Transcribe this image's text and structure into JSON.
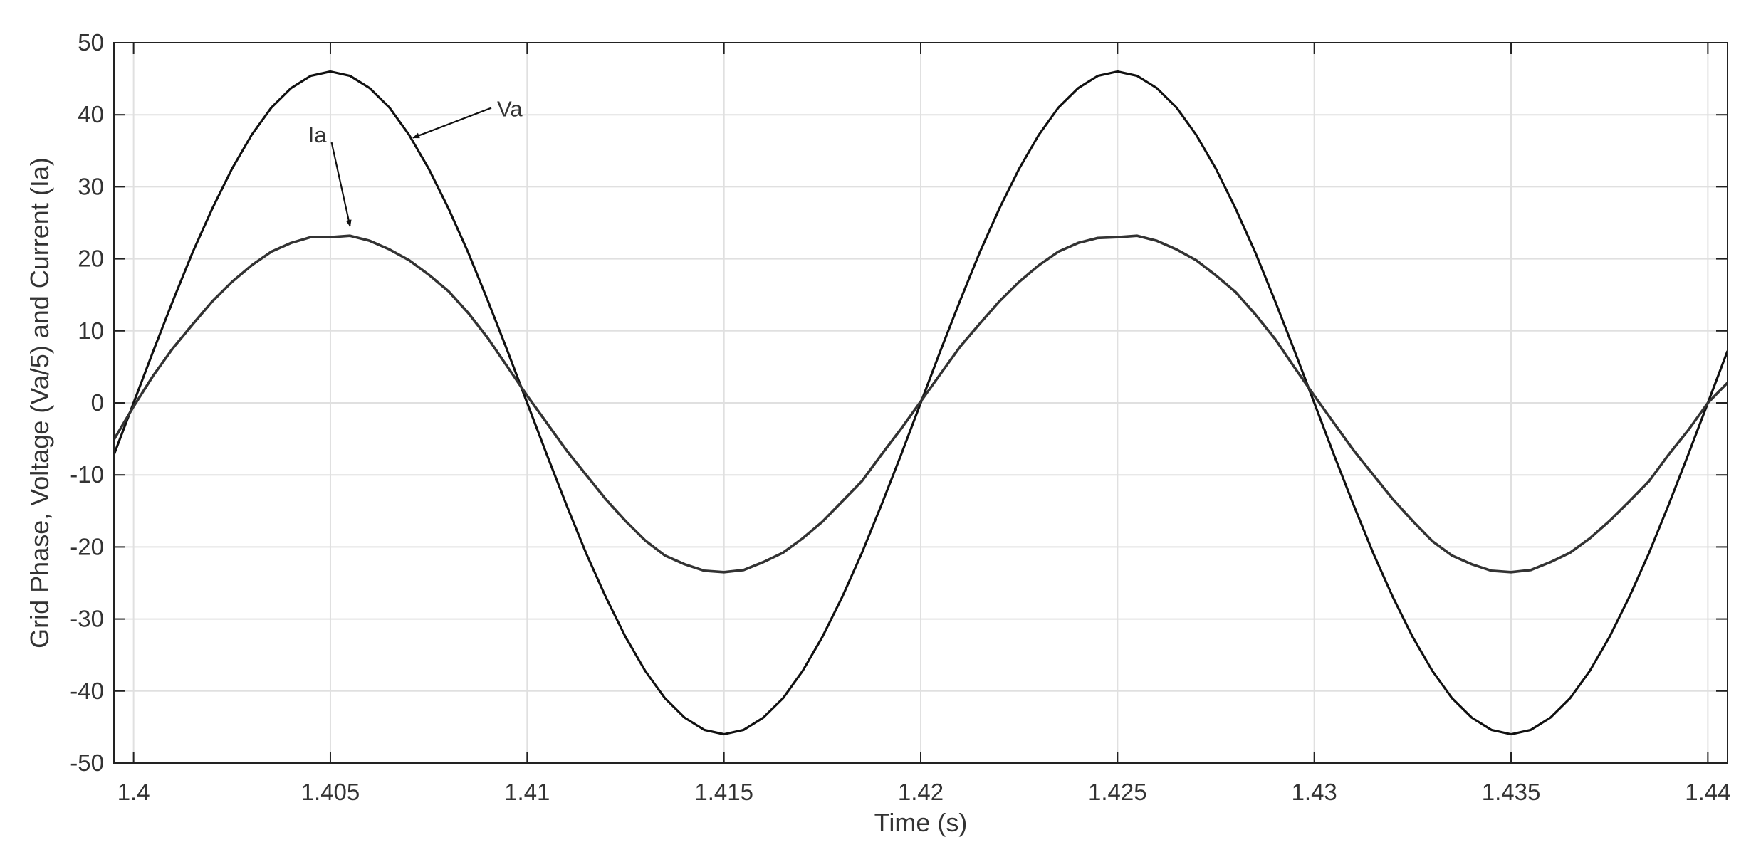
{
  "chart_data": {
    "type": "line",
    "title": "",
    "xlabel": "Time (s)",
    "ylabel": "Grid Phase, Voltage (Va/5) and Current (Ia)",
    "xlim": [
      1.3995,
      1.4405
    ],
    "ylim": [
      -50,
      50
    ],
    "grid": true,
    "legend": "none",
    "x_ticks": [
      1.4,
      1.405,
      1.41,
      1.415,
      1.42,
      1.425,
      1.43,
      1.435,
      1.44
    ],
    "x_tick_labels": [
      "1.4",
      "1.405",
      "1.41",
      "1.415",
      "1.42",
      "1.425",
      "1.43",
      "1.435",
      "1.44"
    ],
    "y_ticks": [
      -50,
      -40,
      -30,
      -20,
      -10,
      0,
      10,
      20,
      30,
      40,
      50
    ],
    "y_tick_labels": [
      "-50",
      "-40",
      "-30",
      "-20",
      "-10",
      "0",
      "10",
      "20",
      "30",
      "40",
      "50"
    ],
    "series": [
      {
        "name": "Va",
        "color": "#111111",
        "x": [
          1.3995,
          1.4,
          1.4005,
          1.401,
          1.4015,
          1.402,
          1.4025,
          1.403,
          1.4035,
          1.404,
          1.4045,
          1.405,
          1.4055,
          1.406,
          1.4065,
          1.407,
          1.4075,
          1.408,
          1.4085,
          1.409,
          1.4095,
          1.41,
          1.4105,
          1.411,
          1.4115,
          1.412,
          1.4125,
          1.413,
          1.4135,
          1.414,
          1.4145,
          1.415,
          1.4155,
          1.416,
          1.4165,
          1.417,
          1.4175,
          1.418,
          1.4185,
          1.419,
          1.4195,
          1.42,
          1.4205,
          1.421,
          1.4215,
          1.422,
          1.4225,
          1.423,
          1.4235,
          1.424,
          1.4245,
          1.425,
          1.4255,
          1.426,
          1.4265,
          1.427,
          1.4275,
          1.428,
          1.4285,
          1.429,
          1.4295,
          1.43,
          1.4305,
          1.431,
          1.4315,
          1.432,
          1.4325,
          1.433,
          1.4335,
          1.434,
          1.4345,
          1.435,
          1.4355,
          1.436,
          1.4365,
          1.437,
          1.4375,
          1.438,
          1.4385,
          1.439,
          1.4395,
          1.44,
          1.4405
        ],
        "y": [
          -7.2,
          0,
          7.2,
          14.2,
          20.9,
          27.0,
          32.5,
          37.2,
          41.0,
          43.7,
          45.4,
          46.0,
          45.4,
          43.7,
          41.0,
          37.2,
          32.5,
          27.0,
          20.9,
          14.2,
          7.2,
          0,
          -7.2,
          -14.2,
          -20.9,
          -27.0,
          -32.5,
          -37.2,
          -41.0,
          -43.7,
          -45.4,
          -46.0,
          -45.4,
          -43.7,
          -41.0,
          -37.2,
          -32.5,
          -27.0,
          -20.9,
          -14.2,
          -7.2,
          0,
          7.2,
          14.2,
          20.9,
          27.0,
          32.5,
          37.2,
          41.0,
          43.7,
          45.4,
          46.0,
          45.4,
          43.7,
          41.0,
          37.2,
          32.5,
          27.0,
          20.9,
          14.2,
          7.2,
          0,
          -7.2,
          -14.2,
          -20.9,
          -27.0,
          -32.5,
          -37.2,
          -41.0,
          -43.7,
          -45.4,
          -46.0,
          -45.4,
          -43.7,
          -41.0,
          -37.2,
          -32.5,
          -27.0,
          -20.9,
          -14.2,
          -7.2,
          0,
          7.2
        ]
      },
      {
        "name": "Ia",
        "color": "#333333",
        "x": [
          1.3995,
          1.4,
          1.4005,
          1.401,
          1.4015,
          1.402,
          1.4025,
          1.403,
          1.4035,
          1.404,
          1.4045,
          1.405,
          1.4055,
          1.406,
          1.4065,
          1.407,
          1.4075,
          1.408,
          1.4085,
          1.409,
          1.4095,
          1.41,
          1.4105,
          1.411,
          1.4115,
          1.412,
          1.4125,
          1.413,
          1.4135,
          1.414,
          1.4145,
          1.415,
          1.4155,
          1.416,
          1.4165,
          1.417,
          1.4175,
          1.418,
          1.4185,
          1.419,
          1.4195,
          1.42,
          1.4205,
          1.421,
          1.4215,
          1.422,
          1.4225,
          1.423,
          1.4235,
          1.424,
          1.4245,
          1.425,
          1.4255,
          1.426,
          1.4265,
          1.427,
          1.4275,
          1.428,
          1.4285,
          1.429,
          1.4295,
          1.43,
          1.4305,
          1.431,
          1.4315,
          1.432,
          1.4325,
          1.433,
          1.4335,
          1.434,
          1.4345,
          1.435,
          1.4355,
          1.436,
          1.4365,
          1.437,
          1.4375,
          1.438,
          1.4385,
          1.439,
          1.4395,
          1.44,
          1.4405
        ],
        "y": [
          -5.1,
          -0.5,
          3.8,
          7.6,
          10.9,
          14.1,
          16.8,
          19.1,
          21.0,
          22.2,
          23.0,
          23.0,
          23.2,
          22.5,
          21.3,
          19.8,
          17.8,
          15.5,
          12.5,
          9.0,
          5.0,
          1.0,
          -2.8,
          -6.6,
          -10.0,
          -13.4,
          -16.4,
          -19.1,
          -21.2,
          -22.4,
          -23.3,
          -23.5,
          -23.2,
          -22.1,
          -20.8,
          -18.8,
          -16.5,
          -13.7,
          -10.9,
          -7.2,
          -3.6,
          0.2,
          4.0,
          7.8,
          11.0,
          14.1,
          16.8,
          19.1,
          21.0,
          22.2,
          22.9,
          23.0,
          23.2,
          22.5,
          21.3,
          19.8,
          17.7,
          15.4,
          12.3,
          8.9,
          4.9,
          1.0,
          -2.8,
          -6.6,
          -10.0,
          -13.4,
          -16.4,
          -19.2,
          -21.2,
          -22.4,
          -23.3,
          -23.5,
          -23.2,
          -22.1,
          -20.8,
          -18.8,
          -16.4,
          -13.7,
          -10.9,
          -7.2,
          -3.8,
          0.0,
          2.8
        ]
      }
    ],
    "annotations": [
      {
        "text": "Va",
        "points_to_x": 1.4071,
        "points_to_y": 36.8
      },
      {
        "text": "Ia",
        "points_to_x": 1.4055,
        "points_to_y": 24.5
      }
    ]
  }
}
